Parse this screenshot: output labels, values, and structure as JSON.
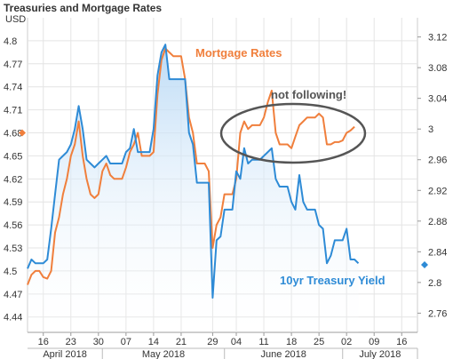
{
  "chart_data": {
    "type": "line",
    "title": "Treasuries and Mortgage Rates",
    "left_axis": {
      "label": "USD",
      "ylim": [
        4.42,
        4.83
      ],
      "ticks": [
        "4.44",
        "4.47",
        "4.5",
        "4.53",
        "4.56",
        "4.59",
        "4.62",
        "4.65",
        "4.68",
        "4.71",
        "4.74",
        "4.77",
        "4.8"
      ],
      "tick_values": [
        4.44,
        4.47,
        4.5,
        4.53,
        4.56,
        4.59,
        4.62,
        4.65,
        4.68,
        4.71,
        4.74,
        4.77,
        4.8
      ]
    },
    "right_axis": {
      "label": "",
      "ylim": [
        2.735,
        3.145
      ],
      "ticks": [
        "2.76",
        "2.8",
        "2.84",
        "2.88",
        "2.92",
        "2.96",
        "3",
        "3.04",
        "3.08",
        "3.12"
      ],
      "tick_values": [
        2.76,
        2.8,
        2.84,
        2.88,
        2.92,
        2.96,
        3.0,
        3.04,
        3.08,
        3.12
      ]
    },
    "x_axis": {
      "start": "2018-04-12",
      "end": "2018-07-20",
      "ticks": [
        {
          "date": "2018-04-16",
          "label": "16"
        },
        {
          "date": "2018-04-23",
          "label": "23"
        },
        {
          "date": "2018-04-30",
          "label": "30"
        },
        {
          "date": "2018-05-07",
          "label": "07"
        },
        {
          "date": "2018-05-14",
          "label": "14"
        },
        {
          "date": "2018-05-21",
          "label": "21"
        },
        {
          "date": "2018-05-29",
          "label": "29"
        },
        {
          "date": "2018-06-04",
          "label": "04"
        },
        {
          "date": "2018-06-11",
          "label": "11"
        },
        {
          "date": "2018-06-18",
          "label": "18"
        },
        {
          "date": "2018-06-25",
          "label": "25"
        },
        {
          "date": "2018-07-02",
          "label": "02"
        },
        {
          "date": "2018-07-09",
          "label": "09"
        },
        {
          "date": "2018-07-16",
          "label": "16"
        }
      ],
      "months": [
        {
          "label": "April 2018",
          "from": "2018-04-12",
          "to": "2018-05-01"
        },
        {
          "label": "May 2018",
          "from": "2018-05-01",
          "to": "2018-06-01"
        },
        {
          "label": "June 2018",
          "from": "2018-06-01",
          "to": "2018-07-01"
        },
        {
          "label": "July 2018",
          "from": "2018-07-01",
          "to": "2018-07-20"
        }
      ]
    },
    "grid": true,
    "series": [
      {
        "name": "Mortgage Rates",
        "axis": "left",
        "color": "#f07f3c",
        "points": [
          [
            "2018-04-12",
            4.482
          ],
          [
            "2018-04-13",
            4.495
          ],
          [
            "2018-04-14",
            4.5
          ],
          [
            "2018-04-15",
            4.5
          ],
          [
            "2018-04-16",
            4.492
          ],
          [
            "2018-04-17",
            4.49
          ],
          [
            "2018-04-18",
            4.5
          ],
          [
            "2018-04-19",
            4.55
          ],
          [
            "2018-04-20",
            4.57
          ],
          [
            "2018-04-21",
            4.6
          ],
          [
            "2018-04-22",
            4.62
          ],
          [
            "2018-04-23",
            4.65
          ],
          [
            "2018-04-24",
            4.665
          ],
          [
            "2018-04-25",
            4.695
          ],
          [
            "2018-04-26",
            4.65
          ],
          [
            "2018-04-27",
            4.62
          ],
          [
            "2018-04-28",
            4.6
          ],
          [
            "2018-04-29",
            4.595
          ],
          [
            "2018-04-30",
            4.6
          ],
          [
            "2018-05-01",
            4.63
          ],
          [
            "2018-05-02",
            4.64
          ],
          [
            "2018-05-03",
            4.625
          ],
          [
            "2018-05-04",
            4.62
          ],
          [
            "2018-05-05",
            4.62
          ],
          [
            "2018-05-06",
            4.62
          ],
          [
            "2018-05-07",
            4.635
          ],
          [
            "2018-05-08",
            4.655
          ],
          [
            "2018-05-09",
            4.665
          ],
          [
            "2018-05-10",
            4.68
          ],
          [
            "2018-05-11",
            4.65
          ],
          [
            "2018-05-12",
            4.65
          ],
          [
            "2018-05-13",
            4.65
          ],
          [
            "2018-05-14",
            4.655
          ],
          [
            "2018-05-15",
            4.73
          ],
          [
            "2018-05-16",
            4.775
          ],
          [
            "2018-05-17",
            4.79
          ],
          [
            "2018-05-18",
            4.785
          ],
          [
            "2018-05-19",
            4.78
          ],
          [
            "2018-05-20",
            4.78
          ],
          [
            "2018-05-21",
            4.78
          ],
          [
            "2018-05-22",
            4.75
          ],
          [
            "2018-05-23",
            4.7
          ],
          [
            "2018-05-24",
            4.68
          ],
          [
            "2018-05-25",
            4.64
          ],
          [
            "2018-05-26",
            4.64
          ],
          [
            "2018-05-27",
            4.64
          ],
          [
            "2018-05-28",
            4.63
          ],
          [
            "2018-05-29",
            4.53
          ],
          [
            "2018-05-30",
            4.56
          ],
          [
            "2018-05-31",
            4.57
          ],
          [
            "2018-06-01",
            4.6
          ],
          [
            "2018-06-02",
            4.6
          ],
          [
            "2018-06-03",
            4.6
          ],
          [
            "2018-06-04",
            4.62
          ],
          [
            "2018-06-05",
            4.68
          ],
          [
            "2018-06-06",
            4.695
          ],
          [
            "2018-06-07",
            4.685
          ],
          [
            "2018-06-08",
            4.69
          ],
          [
            "2018-06-09",
            4.69
          ],
          [
            "2018-06-10",
            4.69
          ],
          [
            "2018-06-11",
            4.7
          ],
          [
            "2018-06-12",
            4.72
          ],
          [
            "2018-06-13",
            4.735
          ],
          [
            "2018-06-14",
            4.68
          ],
          [
            "2018-06-15",
            4.665
          ],
          [
            "2018-06-16",
            4.665
          ],
          [
            "2018-06-17",
            4.665
          ],
          [
            "2018-06-18",
            4.66
          ],
          [
            "2018-06-19",
            4.675
          ],
          [
            "2018-06-20",
            4.69
          ],
          [
            "2018-06-21",
            4.695
          ],
          [
            "2018-06-22",
            4.7
          ],
          [
            "2018-06-23",
            4.7
          ],
          [
            "2018-06-24",
            4.7
          ],
          [
            "2018-06-25",
            4.705
          ],
          [
            "2018-06-26",
            4.7
          ],
          [
            "2018-06-27",
            4.665
          ],
          [
            "2018-06-28",
            4.665
          ],
          [
            "2018-06-29",
            4.668
          ],
          [
            "2018-06-30",
            4.668
          ],
          [
            "2018-07-01",
            4.67
          ],
          [
            "2018-07-02",
            4.68
          ],
          [
            "2018-07-03",
            4.683
          ],
          [
            "2018-07-04",
            4.688
          ]
        ]
      },
      {
        "name": "10yr Treasury Yield",
        "axis": "right",
        "color": "#2e8bd6",
        "points": [
          [
            "2018-04-12",
            2.818
          ],
          [
            "2018-04-13",
            2.83
          ],
          [
            "2018-04-14",
            2.825
          ],
          [
            "2018-04-15",
            2.825
          ],
          [
            "2018-04-16",
            2.825
          ],
          [
            "2018-04-17",
            2.83
          ],
          [
            "2018-04-18",
            2.87
          ],
          [
            "2018-04-19",
            2.915
          ],
          [
            "2018-04-20",
            2.96
          ],
          [
            "2018-04-21",
            2.965
          ],
          [
            "2018-04-22",
            2.97
          ],
          [
            "2018-04-23",
            2.98
          ],
          [
            "2018-04-24",
            3.0
          ],
          [
            "2018-04-25",
            3.03
          ],
          [
            "2018-04-26",
            3.0
          ],
          [
            "2018-04-27",
            2.96
          ],
          [
            "2018-04-28",
            2.955
          ],
          [
            "2018-04-29",
            2.95
          ],
          [
            "2018-04-30",
            2.955
          ],
          [
            "2018-05-01",
            2.96
          ],
          [
            "2018-05-02",
            2.965
          ],
          [
            "2018-05-03",
            2.955
          ],
          [
            "2018-05-04",
            2.955
          ],
          [
            "2018-05-05",
            2.955
          ],
          [
            "2018-05-06",
            2.955
          ],
          [
            "2018-05-07",
            2.97
          ],
          [
            "2018-05-08",
            2.975
          ],
          [
            "2018-05-09",
            3.0
          ],
          [
            "2018-05-10",
            2.97
          ],
          [
            "2018-05-11",
            2.97
          ],
          [
            "2018-05-12",
            2.97
          ],
          [
            "2018-05-13",
            2.97
          ],
          [
            "2018-05-14",
            3.0
          ],
          [
            "2018-05-15",
            3.07
          ],
          [
            "2018-05-16",
            3.1
          ],
          [
            "2018-05-17",
            3.11
          ],
          [
            "2018-05-18",
            3.065
          ],
          [
            "2018-05-19",
            3.065
          ],
          [
            "2018-05-20",
            3.065
          ],
          [
            "2018-05-21",
            3.065
          ],
          [
            "2018-05-22",
            3.065
          ],
          [
            "2018-05-23",
            2.995
          ],
          [
            "2018-05-24",
            2.98
          ],
          [
            "2018-05-25",
            2.93
          ],
          [
            "2018-05-26",
            2.93
          ],
          [
            "2018-05-27",
            2.93
          ],
          [
            "2018-05-28",
            2.93
          ],
          [
            "2018-05-29",
            2.78
          ],
          [
            "2018-05-30",
            2.855
          ],
          [
            "2018-05-31",
            2.86
          ],
          [
            "2018-06-01",
            2.895
          ],
          [
            "2018-06-02",
            2.895
          ],
          [
            "2018-06-03",
            2.895
          ],
          [
            "2018-06-04",
            2.945
          ],
          [
            "2018-06-05",
            2.935
          ],
          [
            "2018-06-06",
            2.975
          ],
          [
            "2018-06-07",
            2.955
          ],
          [
            "2018-06-08",
            2.96
          ],
          [
            "2018-06-09",
            2.96
          ],
          [
            "2018-06-10",
            2.96
          ],
          [
            "2018-06-11",
            2.965
          ],
          [
            "2018-06-12",
            2.97
          ],
          [
            "2018-06-13",
            2.975
          ],
          [
            "2018-06-14",
            2.935
          ],
          [
            "2018-06-15",
            2.925
          ],
          [
            "2018-06-16",
            2.925
          ],
          [
            "2018-06-17",
            2.925
          ],
          [
            "2018-06-18",
            2.905
          ],
          [
            "2018-06-19",
            2.895
          ],
          [
            "2018-06-20",
            2.94
          ],
          [
            "2018-06-21",
            2.905
          ],
          [
            "2018-06-22",
            2.895
          ],
          [
            "2018-06-23",
            2.895
          ],
          [
            "2018-06-24",
            2.895
          ],
          [
            "2018-06-25",
            2.875
          ],
          [
            "2018-06-26",
            2.87
          ],
          [
            "2018-06-27",
            2.825
          ],
          [
            "2018-06-28",
            2.835
          ],
          [
            "2018-06-29",
            2.855
          ],
          [
            "2018-06-30",
            2.855
          ],
          [
            "2018-07-01",
            2.855
          ],
          [
            "2018-07-02",
            2.87
          ],
          [
            "2018-07-03",
            2.83
          ],
          [
            "2018-07-04",
            2.83
          ],
          [
            "2018-07-05",
            2.825
          ]
        ]
      }
    ],
    "annotations": {
      "mortgage_label": "Mortgage Rates",
      "treasury_label": "10yr Treasury Yield",
      "callout_text": "not following!",
      "left_marker": {
        "date": "2018-04-12",
        "value": 4.68
      },
      "right_marker": {
        "date": "2018-07-20",
        "value": 2.823
      }
    },
    "colors": {
      "mortgage": "#f07f3c",
      "treasury": "#2e8bd6",
      "area_top": "#b9d9f5",
      "grid": "#e4e4e4",
      "callout_ring": "#555555"
    }
  }
}
